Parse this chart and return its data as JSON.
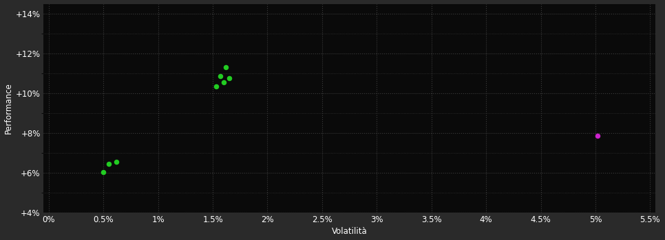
{
  "background_color": "#2a2a2a",
  "plot_bg_color": "#0a0a0a",
  "grid_color": "#3d3d3d",
  "text_color": "#ffffff",
  "green_points": [
    [
      1.62,
      11.3
    ],
    [
      1.57,
      10.85
    ],
    [
      1.65,
      10.75
    ],
    [
      1.53,
      10.35
    ],
    [
      1.6,
      10.55
    ],
    [
      0.55,
      6.45
    ],
    [
      0.62,
      6.55
    ],
    [
      0.5,
      6.05
    ]
  ],
  "magenta_point": [
    5.02,
    7.88
  ],
  "green_color": "#22cc22",
  "magenta_color": "#cc22cc",
  "xlabel": "Volatilità",
  "ylabel": "Performance",
  "xlim": [
    -0.05,
    5.55
  ],
  "ylim": [
    4.0,
    14.5
  ],
  "xticks": [
    0.0,
    0.5,
    1.0,
    1.5,
    2.0,
    2.5,
    3.0,
    3.5,
    4.0,
    4.5,
    5.0,
    5.5
  ],
  "yticks": [
    4.0,
    6.0,
    8.0,
    10.0,
    12.0,
    14.0
  ],
  "xtick_labels": [
    "0%",
    "0.5%",
    "1%",
    "1.5%",
    "2%",
    "2.5%",
    "3%",
    "3.5%",
    "4%",
    "4.5%",
    "5%",
    "5.5%"
  ],
  "ytick_labels": [
    "+4%",
    "+6%",
    "+8%",
    "+10%",
    "+12%",
    "+14%"
  ],
  "marker_size": 7,
  "font_size": 8.5
}
